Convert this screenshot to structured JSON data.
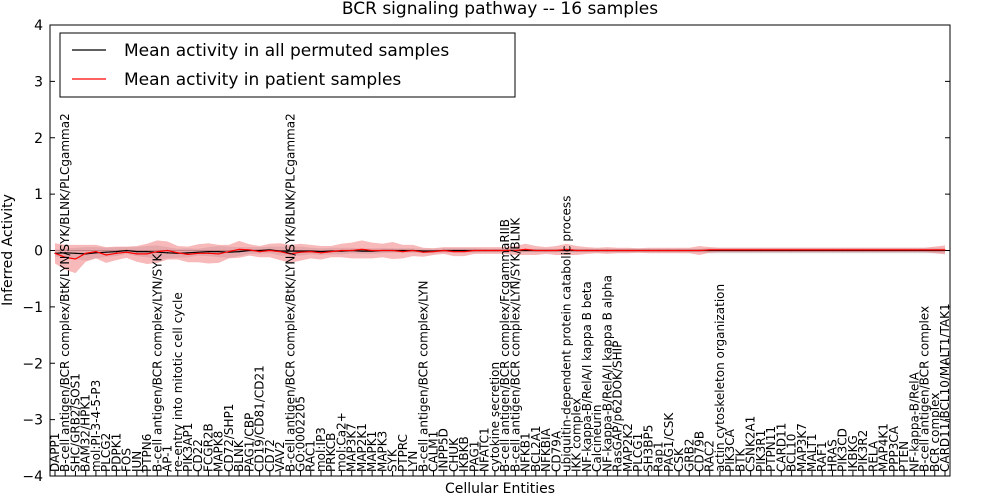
{
  "chart_data": {
    "type": "line",
    "title": "BCR signaling pathway -- 16 samples",
    "xlabel": "Cellular Entities",
    "ylabel": "Inferred Activity",
    "ylim": [
      -4,
      4
    ],
    "yticks": [
      -4,
      -3,
      -2,
      -1,
      0,
      1,
      2,
      3,
      4
    ],
    "ytick_labels": [
      "−4",
      "−3",
      "−2",
      "−1",
      "0",
      "1",
      "2",
      "3",
      "4"
    ],
    "grid": false,
    "legend_position": "top-left",
    "colors": {
      "permuted": "#000000",
      "patient": "#ff0000",
      "patient_band": "#f08080",
      "permuted_band": "#c0c0c8"
    },
    "entities": [
      "DAPP1",
      "B-cell antigen/BCR complex/BtK/LYN/SYK/BLNK/PLCgamma2",
      "SHC/GRB2/SOS1",
      "BAM32/HPK1",
      "mol:PI-3-4-5-P3",
      "PLCG2",
      "PDPK1",
      "FOS",
      "JUN",
      "PTPN6",
      "B-cell antigen/BCR complex/LYN/SYK",
      "AP-1",
      "re-entry into mitotic cell cycle",
      "PIK3AP1",
      "CD22",
      "FCGR2B",
      "MAPK8",
      "CD72/SHP1",
      "BLNK",
      "PAG1/CBP",
      "CD19/CD81/CD21",
      "CD72",
      "VAV2",
      "B-cell antigen/BCR complex/BtK/LYN/SYK/BLNK/PLCgamma2",
      "GO:0002205",
      "RAC1",
      "mol:IP3",
      "PRKCB",
      "mol:Ca2+",
      "MAP3K7",
      "MAP2K1",
      "MAPK1",
      "MAPK3",
      "SYK",
      "PTPRC",
      "LYN",
      "B-cell antigen/BCR complex/LYN",
      "CALM1",
      "INPP5D",
      "CHUK",
      "IKBKB",
      "PAG1",
      "NFATC1",
      "cytokine secretion",
      "B-cell antigen/BCR complex/FcgammaRIIB",
      "B-cell antigen/BCR complex/LYN/SYK/BLNK",
      "NFKB1",
      "BCL2A1",
      "NFKBIA",
      "CD79A",
      "ubiquitin-dependent protein catabolic process",
      "IKK complex",
      "NF-kappa-B/RelA/I kappa B beta",
      "Calcineurin",
      "NF-kappa-B/RelA/I kappa B alpha",
      "RasGAP/p62DOK/SHIP",
      "MAP2K2",
      "PLCG1",
      "SH3BP5",
      "Rap1",
      "PAG1/CSK",
      "CSK",
      "GRB2",
      "CD79B",
      "RAC2",
      "actin cytoskeleton organization",
      "PIK3CA",
      "BTK",
      "CSNK2A1",
      "PIK3R1",
      "PTPN11",
      "CARD11",
      "BCL10",
      "MAP3K7",
      "MALT1",
      "RAF1",
      "HRAS",
      "PIK3CD",
      "IKBKG",
      "PIK3R2",
      "RELA",
      "MAP4K1",
      "PPP3CA",
      "PTEN",
      "NF-kappa-B/RelA",
      "B-cell antigen/BCR complex",
      "BCR complex",
      "CARD11/BCL10/MALT1/TAK1"
    ],
    "series": [
      {
        "name": "Mean activity in all permuted samples",
        "values": [
          -0.05,
          -0.04,
          -0.05,
          -0.06,
          -0.04,
          -0.03,
          -0.02,
          0.0,
          -0.02,
          -0.02,
          -0.03,
          -0.04,
          -0.05,
          -0.04,
          -0.03,
          -0.02,
          -0.02,
          -0.03,
          -0.02,
          0.0,
          0.0,
          0.01,
          -0.01,
          -0.01,
          -0.01,
          -0.01,
          -0.02,
          -0.01,
          -0.01,
          0.0,
          -0.01,
          -0.01,
          0.0,
          0.0,
          0.0,
          0.0,
          -0.01,
          -0.01,
          0.0,
          0.0,
          0.0,
          0.0,
          0.0,
          0.0,
          0.0,
          0.0,
          0.0,
          0.0,
          0.0,
          0.0,
          0.0,
          0.0,
          0.0,
          0.0,
          0.0,
          0.0,
          0.0,
          0.0,
          0.0,
          0.0,
          0.0,
          0.0,
          0.0,
          0.0,
          0.0,
          0.0,
          0.0,
          0.0,
          0.0,
          0.0,
          0.0,
          0.0,
          0.0,
          0.0,
          0.0,
          0.0,
          0.0,
          0.0,
          0.0,
          0.0,
          0.0,
          0.0,
          0.0,
          0.0,
          0.0,
          0.0,
          0.0,
          0.0
        ],
        "spread": [
          0.06,
          0.08,
          0.1,
          0.12,
          0.1,
          0.08,
          0.08,
          0.06,
          0.08,
          0.1,
          0.12,
          0.1,
          0.08,
          0.08,
          0.06,
          0.08,
          0.1,
          0.1,
          0.08,
          0.06,
          0.06,
          0.06,
          0.08,
          0.08,
          0.08,
          0.06,
          0.06,
          0.06,
          0.06,
          0.05,
          0.05,
          0.05,
          0.05,
          0.04,
          0.04,
          0.04,
          0.04,
          0.04,
          0.04,
          0.04,
          0.04,
          0.04,
          0.03,
          0.03,
          0.03,
          0.03,
          0.03,
          0.03,
          0.03,
          0.03,
          0.03,
          0.03,
          0.03,
          0.03,
          0.03,
          0.03,
          0.03,
          0.03,
          0.03,
          0.03,
          0.03,
          0.03,
          0.03,
          0.03,
          0.05,
          0.05,
          0.05,
          0.05,
          0.05,
          0.05,
          0.05,
          0.05,
          0.05,
          0.05,
          0.05,
          0.05,
          0.05,
          0.05,
          0.05,
          0.05,
          0.05,
          0.05,
          0.05,
          0.05,
          0.05,
          0.05,
          0.05,
          0.05
        ]
      },
      {
        "name": "Mean activity in patient samples",
        "values": [
          -0.05,
          -0.12,
          -0.15,
          -0.05,
          -0.02,
          -0.08,
          -0.05,
          -0.03,
          -0.06,
          -0.06,
          -0.02,
          0.0,
          -0.04,
          -0.07,
          -0.05,
          -0.05,
          -0.06,
          -0.02,
          0.02,
          0.01,
          -0.02,
          0.0,
          -0.02,
          -0.06,
          -0.03,
          -0.02,
          -0.04,
          -0.02,
          0.0,
          0.0,
          0.02,
          0.0,
          0.0,
          0.0,
          -0.02,
          0.0,
          -0.03,
          -0.02,
          0.0,
          -0.02,
          -0.02,
          0.0,
          0.0,
          0.0,
          0.0,
          0.0,
          0.02,
          0.0,
          0.0,
          0.0,
          0.02,
          0.0,
          0.0,
          0.0,
          0.0,
          0.0,
          0.0,
          0.0,
          0.0,
          0.0,
          0.0,
          0.0,
          0.0,
          0.0,
          0.01,
          0.01,
          0.01,
          0.01,
          0.01,
          0.01,
          0.01,
          0.01,
          0.01,
          0.01,
          0.01,
          0.01,
          0.01,
          0.01,
          0.01,
          0.01,
          0.01,
          0.01,
          0.01,
          0.01,
          0.01,
          0.01,
          0.01,
          0.01
        ],
        "spread": [
          0.18,
          0.22,
          0.25,
          0.15,
          0.12,
          0.14,
          0.12,
          0.1,
          0.14,
          0.18,
          0.2,
          0.16,
          0.12,
          0.14,
          0.16,
          0.18,
          0.16,
          0.12,
          0.15,
          0.1,
          0.1,
          0.12,
          0.15,
          0.16,
          0.15,
          0.12,
          0.12,
          0.1,
          0.12,
          0.14,
          0.16,
          0.14,
          0.12,
          0.15,
          0.12,
          0.1,
          0.08,
          0.06,
          0.06,
          0.08,
          0.08,
          0.06,
          0.06,
          0.06,
          0.06,
          0.08,
          0.1,
          0.08,
          0.06,
          0.08,
          0.1,
          0.08,
          0.06,
          0.05,
          0.06,
          0.05,
          0.05,
          0.04,
          0.05,
          0.05,
          0.05,
          0.05,
          0.05,
          0.08,
          0.05,
          0.04,
          0.04,
          0.04,
          0.04,
          0.04,
          0.04,
          0.04,
          0.04,
          0.04,
          0.04,
          0.04,
          0.04,
          0.04,
          0.04,
          0.04,
          0.04,
          0.04,
          0.04,
          0.04,
          0.04,
          0.04,
          0.06,
          0.08
        ]
      }
    ]
  }
}
